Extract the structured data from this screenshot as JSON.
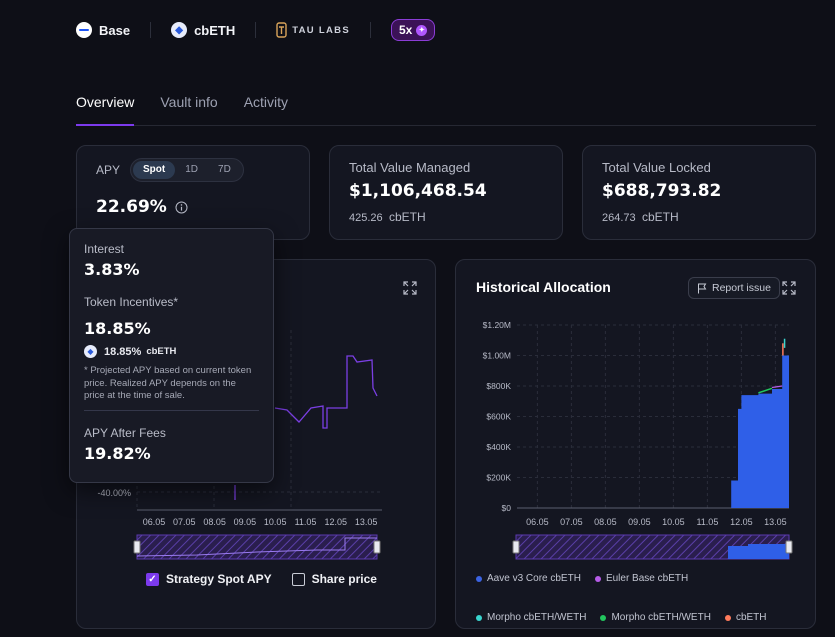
{
  "header": {
    "network": "Base",
    "asset": "cbETH",
    "curator": "TAU LABS",
    "leverage": "5x"
  },
  "tabs": [
    {
      "label": "Overview",
      "active": true
    },
    {
      "label": "Vault info",
      "active": false
    },
    {
      "label": "Activity",
      "active": false
    }
  ],
  "apy": {
    "label": "APY",
    "periods": [
      "Spot",
      "1D",
      "7D"
    ],
    "selected": "Spot",
    "value": "22.69%"
  },
  "tvm": {
    "label": "Total Value Managed",
    "usd": "$1,106,468.54",
    "amount": "425.26",
    "unit": "cbETH"
  },
  "tvl": {
    "label": "Total Value Locked",
    "usd": "$688,793.82",
    "amount": "264.73",
    "unit": "cbETH"
  },
  "tooltip": {
    "interest_label": "Interest",
    "interest_value": "3.83%",
    "incentives_label": "Token Incentives*",
    "incentives_value": "18.85%",
    "incentive_token_value": "18.85%",
    "incentive_token": "cbETH",
    "note": "* Projected APY based on current token price. Realized APY depends on the price at the time of sale.",
    "after_fees_label": "APY After Fees",
    "after_fees_value": "19.82%"
  },
  "left_chart": {
    "ytick": "-40.00%",
    "xticks": [
      "06.05",
      "07.05",
      "08.05",
      "09.05",
      "10.05",
      "11.05",
      "12.05",
      "13.05"
    ],
    "toggles": [
      {
        "label": "Strategy Spot APY",
        "checked": true
      },
      {
        "label": "Share price",
        "checked": false
      }
    ],
    "line_color": "#7b3fe4"
  },
  "allocation": {
    "title": "Historical Allocation",
    "report_label": "Report issue",
    "legend": [
      {
        "label": "Aave v3 Core cbETH",
        "color": "#3b63e3"
      },
      {
        "label": "Euler Base cbETH",
        "color": "#b65ce8"
      },
      {
        "label": "Morpho cbETH/WETH",
        "color": "#39d5cf"
      },
      {
        "label": "Morpho cbETH/WETH",
        "color": "#22c55e"
      },
      {
        "label": "cbETH",
        "color": "#ff7b5c"
      }
    ]
  },
  "chart_data": {
    "type": "area",
    "title": "Historical Allocation",
    "x": [
      "06.05",
      "07.05",
      "08.05",
      "09.05",
      "10.05",
      "11.05",
      "12.05",
      "13.05"
    ],
    "yticks": [
      "$0",
      "$200K",
      "$400K",
      "$600K",
      "$800K",
      "$1.00M",
      "$1.20M"
    ],
    "ylim": [
      0,
      1200000
    ],
    "series": [
      {
        "name": "Aave v3 Core cbETH",
        "points": [
          [
            11.6,
            0
          ],
          [
            11.7,
            180000
          ],
          [
            11.9,
            650000
          ],
          [
            12.0,
            740000
          ],
          [
            12.5,
            750000
          ],
          [
            12.9,
            780000
          ],
          [
            13.2,
            1000000
          ]
        ]
      },
      {
        "name": "Morpho cbETH/WETH",
        "points": [
          [
            12.5,
            5000
          ],
          [
            12.9,
            8000
          ]
        ]
      },
      {
        "name": "Euler Base cbETH",
        "points": [
          [
            12.9,
            5000
          ],
          [
            13.2,
            8000
          ]
        ]
      },
      {
        "name": "cbETH",
        "points": [
          [
            13.2,
            10000
          ],
          [
            13.3,
            80000
          ]
        ]
      }
    ],
    "grid": true
  }
}
